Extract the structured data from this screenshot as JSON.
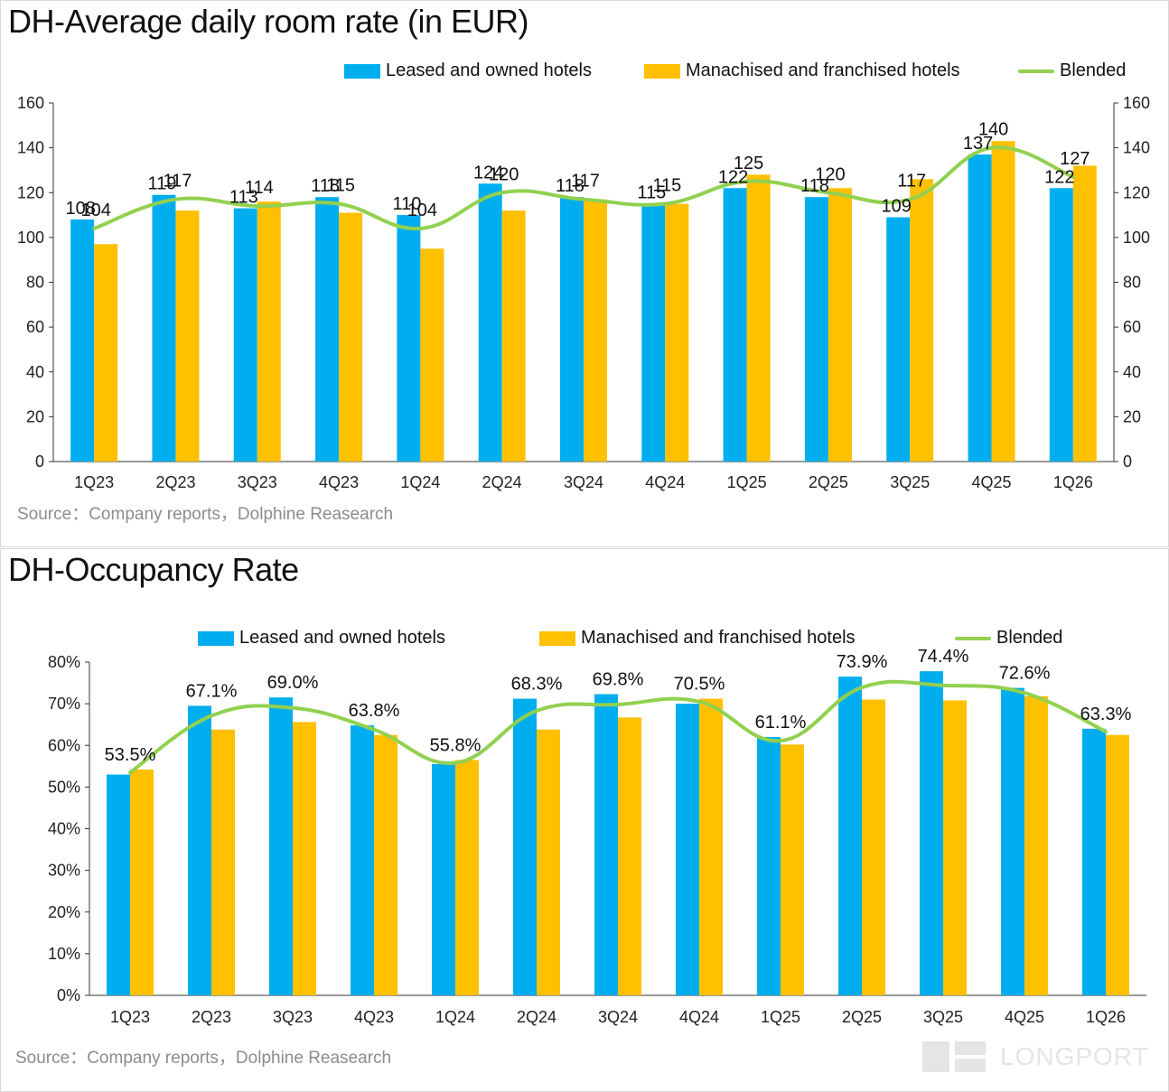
{
  "colors": {
    "leased": "#00AEEF",
    "manachised": "#FFC000",
    "blended": "#92D050",
    "axis": "#333333",
    "source": "#8c8c8c"
  },
  "watermark": {
    "brand": "LONGPORT"
  },
  "charts": [
    {
      "title": "DH-Average daily room rate (in EUR)",
      "source": "Source：Company reports，Dolphine Reasearch",
      "legend": [
        "Leased and owned hotels",
        "Manachised and franchised hotels",
        "Blended"
      ],
      "chart_data": {
        "type": "bar",
        "categories": [
          "1Q23",
          "2Q23",
          "3Q23",
          "4Q23",
          "1Q24",
          "2Q24",
          "3Q24",
          "4Q24",
          "1Q25",
          "2Q25",
          "3Q25",
          "4Q25",
          "1Q26"
        ],
        "ylim": [
          0,
          160
        ],
        "yticks": [
          0,
          20,
          40,
          60,
          80,
          100,
          120,
          140,
          160
        ],
        "ytick_labels": [
          "0",
          "20",
          "40",
          "60",
          "80",
          "100",
          "120",
          "140",
          "160"
        ],
        "secondary_axis": true,
        "series": [
          {
            "name": "Leased and owned hotels",
            "kind": "bar",
            "values": [
              108,
              119,
              113,
              118,
              110,
              124,
              118,
              115,
              122,
              118,
              109,
              137,
              122
            ],
            "labels": [
              "108",
              "119",
              "113",
              "118",
              "110",
              "124",
              "118",
              "115",
              "122",
              "118",
              "109",
              "137",
              "122"
            ]
          },
          {
            "name": "Manachised and franchised hotels",
            "kind": "bar",
            "values": [
              97,
              112,
              116,
              111,
              95,
              112,
              117,
              115,
              128,
              122,
              126,
              143,
              132
            ]
          },
          {
            "name": "Blended",
            "kind": "line",
            "values": [
              104,
              117,
              114,
              115,
              104,
              120,
              117,
              115,
              125,
              120,
              117,
              140,
              127
            ],
            "labels": [
              "104",
              "117",
              "114",
              "115",
              "104",
              "120",
              "117",
              "115",
              "125",
              "120",
              "117",
              "140",
              "127"
            ]
          }
        ]
      }
    },
    {
      "title": "DH-Occupancy Rate",
      "source": "Source：Company reports，Dolphine Reasearch",
      "legend": [
        "Leased and owned hotels",
        "Manachised and franchised hotels",
        "Blended"
      ],
      "chart_data": {
        "type": "bar",
        "categories": [
          "1Q23",
          "2Q23",
          "3Q23",
          "4Q23",
          "1Q24",
          "2Q24",
          "3Q24",
          "4Q24",
          "1Q25",
          "2Q25",
          "3Q25",
          "4Q25",
          "1Q26"
        ],
        "ylim": [
          0,
          80
        ],
        "yticks": [
          0,
          10,
          20,
          30,
          40,
          50,
          60,
          70,
          80
        ],
        "ytick_labels": [
          "0%",
          "10%",
          "20%",
          "30%",
          "40%",
          "50%",
          "60%",
          "70%",
          "80%"
        ],
        "secondary_axis": false,
        "series": [
          {
            "name": "Leased and owned hotels",
            "kind": "bar",
            "values": [
              53,
              69.5,
              71.5,
              64.8,
              55.5,
              71.2,
              72.3,
              70,
              62,
              76.5,
              77.8,
              73.8,
              64
            ]
          },
          {
            "name": "Manachised and franchised hotels",
            "kind": "bar",
            "values": [
              54.2,
              63.8,
              65.6,
              62.5,
              56.5,
              63.8,
              66.7,
              71.2,
              60.2,
              71,
              70.8,
              71.8,
              62.5
            ]
          },
          {
            "name": "Blended",
            "kind": "line",
            "values": [
              53.5,
              67.1,
              69.0,
              63.8,
              55.8,
              68.3,
              69.8,
              70.5,
              61.1,
              73.9,
              74.4,
              72.6,
              63.3
            ],
            "labels": [
              "53.5%",
              "67.1%",
              "69.0%",
              "63.8%",
              "55.8%",
              "68.3%",
              "69.8%",
              "70.5%",
              "61.1%",
              "73.9%",
              "74.4%",
              "72.6%",
              "63.3%"
            ]
          }
        ]
      }
    }
  ]
}
